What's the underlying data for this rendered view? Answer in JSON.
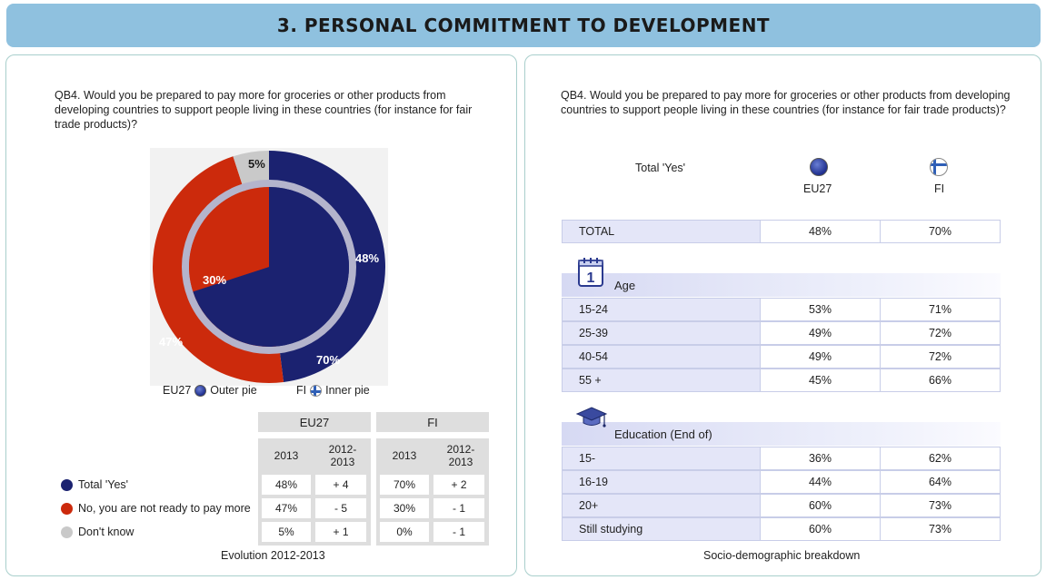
{
  "header": {
    "title": "3. PERSONAL COMMITMENT TO DEVELOPMENT"
  },
  "left": {
    "question": "QB4. Would you be prepared to pay more for groceries or other products from developing countries to support people living in these countries (for instance for fair trade products)?",
    "pie_labels": {
      "outer_yes": "48%",
      "outer_no": "47%",
      "outer_dk": "5%",
      "inner_yes": "70%",
      "inner_no": "30%"
    },
    "legend": {
      "eu": "EU27",
      "eu_desc": "Outer pie",
      "fi": "FI",
      "fi_desc": "Inner pie"
    },
    "table": {
      "group_eu": "EU27",
      "group_fi": "FI",
      "col_2013": "2013",
      "col_evo": "2012-\n2013",
      "rows": [
        {
          "label": "Total 'Yes'",
          "color": "#1b2270",
          "eu": "48%",
          "eu_evo": "+ 4",
          "fi": "70%",
          "fi_evo": "+ 2"
        },
        {
          "label": "No, you are not ready to pay more",
          "color": "#cc2a0c",
          "eu": "47%",
          "eu_evo": "- 5",
          "fi": "30%",
          "fi_evo": "- 1"
        },
        {
          "label": "Don't know",
          "color": "#c9c9c9",
          "eu": "5%",
          "eu_evo": "+ 1",
          "fi": "0%",
          "fi_evo": "- 1"
        }
      ]
    },
    "caption": "Evolution 2012-2013"
  },
  "chart_data": {
    "type": "pie",
    "categories": [
      "Total 'Yes'",
      "No, you are not ready to pay more",
      "Don't know"
    ],
    "series": [
      {
        "name": "EU27",
        "values": [
          48,
          47,
          5
        ]
      },
      {
        "name": "FI",
        "values": [
          70,
          30,
          0
        ]
      }
    ],
    "colors": [
      "#1b2270",
      "#cc2a0c",
      "#c9c9c9"
    ]
  },
  "right": {
    "question": "QB4. Would you be prepared to pay more for groceries or other products from developing countries to support people living in these countries (for instance for fair trade products)?",
    "total_label": "Total 'Yes'",
    "col_eu": "EU27",
    "col_fi": "FI",
    "total_row": {
      "label": "TOTAL",
      "eu": "48%",
      "fi": "70%"
    },
    "age_title": "Age",
    "age_rows": [
      {
        "label": "15-24",
        "eu": "53%",
        "fi": "71%"
      },
      {
        "label": "25-39",
        "eu": "49%",
        "fi": "72%"
      },
      {
        "label": "40-54",
        "eu": "49%",
        "fi": "72%"
      },
      {
        "label": "55 +",
        "eu": "45%",
        "fi": "66%"
      }
    ],
    "edu_title": "Education (End of)",
    "edu_rows": [
      {
        "label": "15-",
        "eu": "36%",
        "fi": "62%"
      },
      {
        "label": "16-19",
        "eu": "44%",
        "fi": "64%"
      },
      {
        "label": "20+",
        "eu": "60%",
        "fi": "73%"
      },
      {
        "label": "Still studying",
        "eu": "60%",
        "fi": "73%"
      }
    ],
    "caption": "Socio-demographic breakdown",
    "calendar_digit": "1"
  }
}
